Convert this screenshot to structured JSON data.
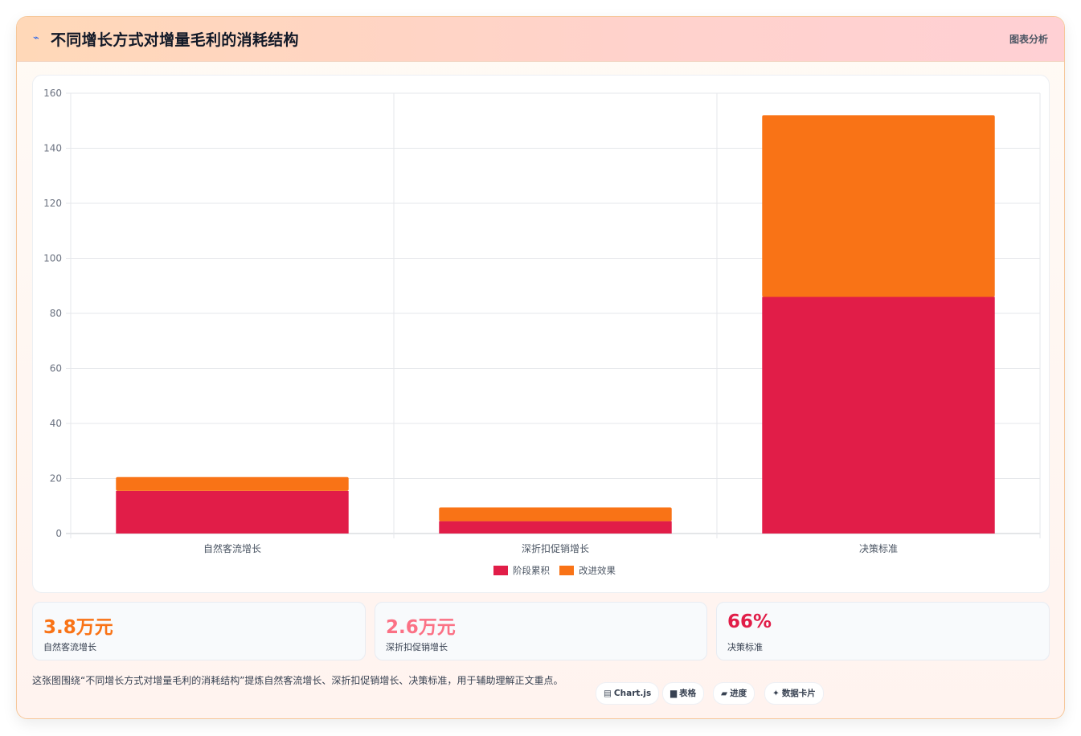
{
  "header": {
    "title": "不同增长方式对增量毛利的消耗结构",
    "tag": "图表分析"
  },
  "chart_data": {
    "type": "bar",
    "stacked": true,
    "categories": [
      "自然客流增长",
      "深折扣促销增长",
      "决策标准"
    ],
    "series": [
      {
        "name": "阶段累积",
        "color": "#e11d48",
        "values": [
          15.5,
          4.5,
          86
        ]
      },
      {
        "name": "改进效果",
        "color": "#f97316",
        "values": [
          5,
          5,
          66
        ]
      }
    ],
    "ylim": [
      0,
      160
    ],
    "yticks": [
      0,
      20,
      40,
      60,
      80,
      100,
      120,
      140,
      160
    ],
    "grid": true,
    "legend": "bottom",
    "title": "",
    "xlabel": "",
    "ylabel": ""
  },
  "stats": [
    {
      "value": "3.8万元",
      "label": "自然客流增长",
      "color": "#f97316"
    },
    {
      "value": "2.6万元",
      "label": "深折扣促销增长",
      "color": "#fb7185"
    },
    {
      "value": "66%",
      "label": "决策标准",
      "color": "#e11d48"
    }
  ],
  "description": "这张图围绕“不同增长方式对增量毛利的消耗结构”提炼自然客流增长、深折扣促销增长、决策标准，用于辅助理解正文重点。",
  "chips": [
    {
      "icon": "chart-icon",
      "glyph": "▤",
      "label": "Chart.js"
    },
    {
      "icon": "table-icon",
      "glyph": "▆",
      "label": "表格"
    },
    {
      "icon": "progress-icon",
      "glyph": "▰",
      "label": "进度"
    },
    {
      "icon": "card-icon",
      "glyph": "✦",
      "label": "数据卡片"
    }
  ]
}
